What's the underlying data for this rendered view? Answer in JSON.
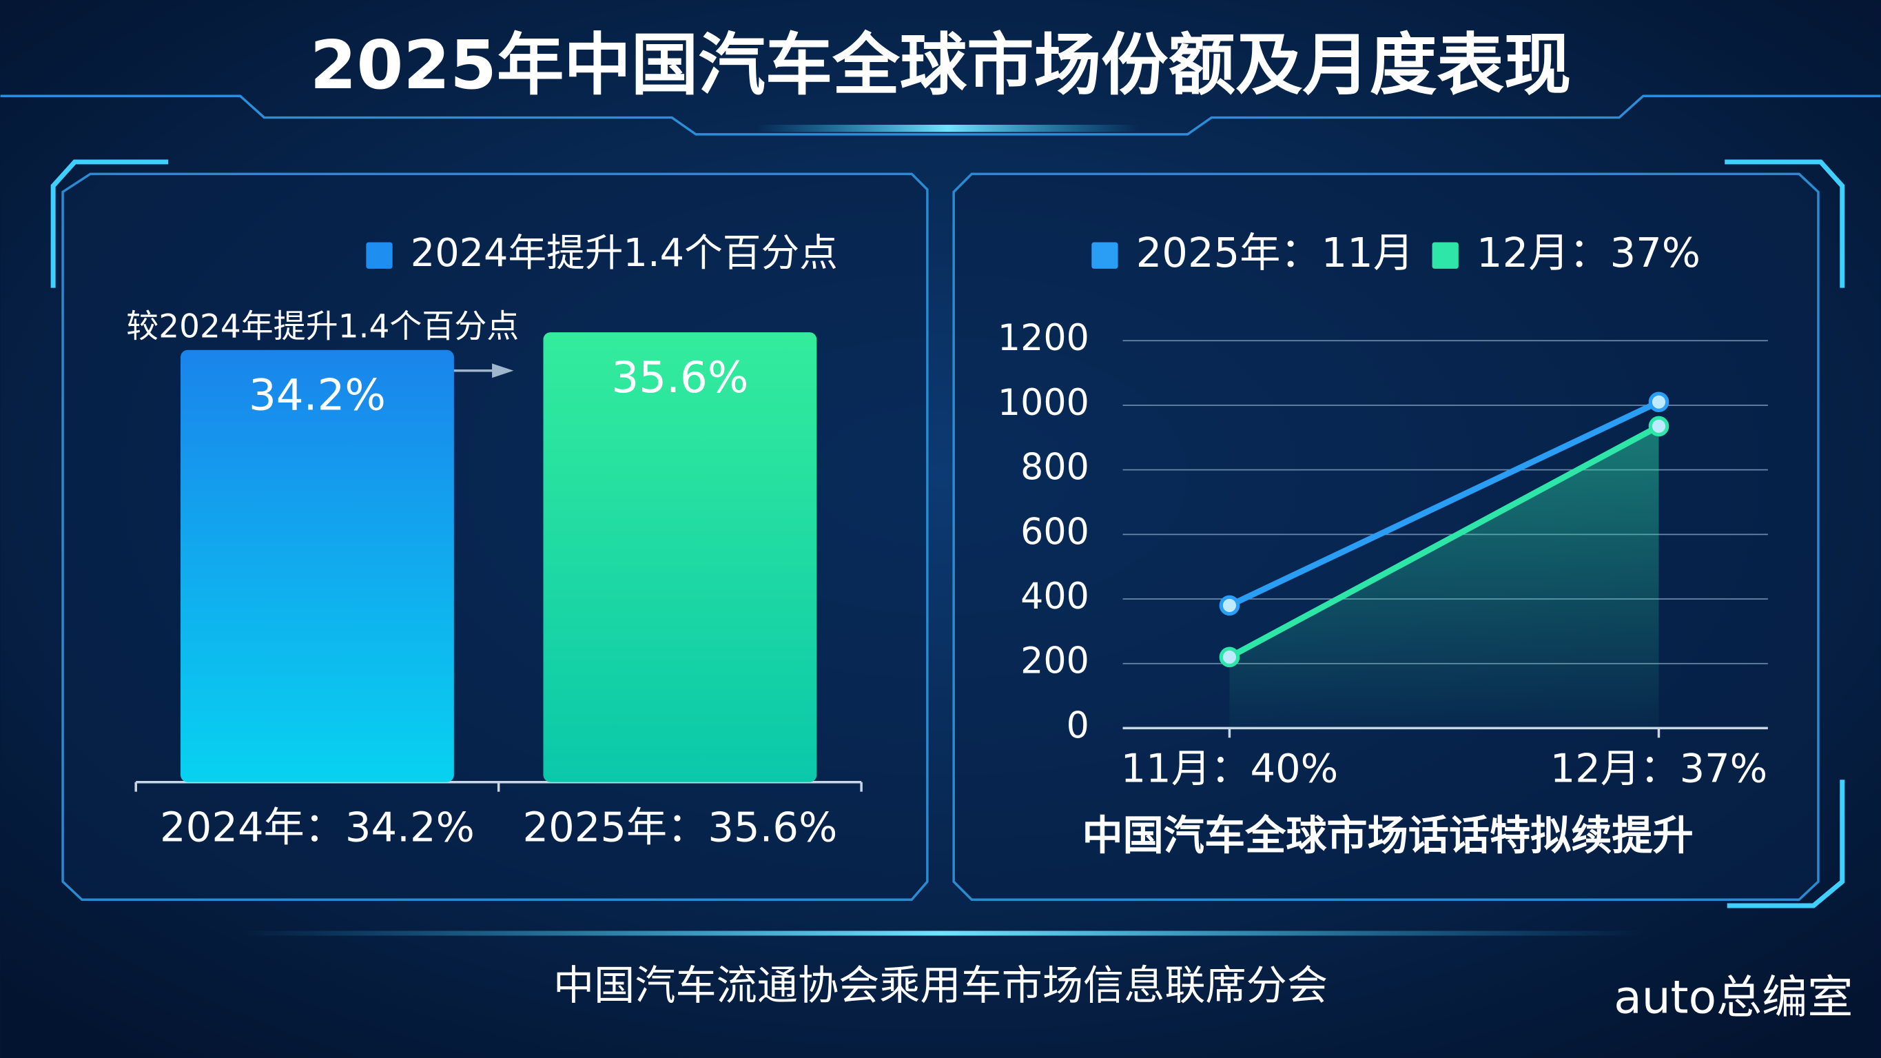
{
  "title": "2025年中国汽车全球市场份额及月度表现",
  "footer": "中国汽车流通协会乘用车市场信息联席分会",
  "watermark": "auto总编室",
  "chart_data": [
    {
      "type": "bar",
      "legend": "2024年提升1.4个百分点",
      "annotation": "较2024年提升1.4个百分点",
      "categories": [
        "2024年：34.2%",
        "2025年：35.6%"
      ],
      "values": [
        34.2,
        35.6
      ],
      "value_labels": [
        "34.2%",
        "35.6%"
      ],
      "colors": [
        "#1e8ef0",
        "#2ee6a0"
      ]
    },
    {
      "type": "line",
      "annotation": "中国汽车全球市场话话特拟续提升",
      "categories": [
        "11月：40%",
        "12月：37%"
      ],
      "series": [
        {
          "name": "2025年：11月",
          "color": "#2a9df4",
          "values": [
            380,
            1010
          ]
        },
        {
          "name": "12月：37%",
          "color": "#2ee6a8",
          "values": [
            220,
            935
          ]
        }
      ],
      "ylim": [
        0,
        1200
      ],
      "yticks": [
        0,
        200,
        400,
        600,
        800,
        1000,
        1200
      ],
      "grid": true
    }
  ]
}
